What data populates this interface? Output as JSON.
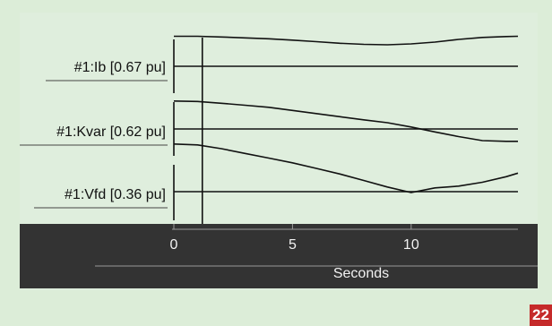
{
  "chart_data": {
    "type": "line",
    "title": "",
    "xlabel": "Seconds",
    "xlim": [
      0,
      14.5
    ],
    "xticks": [
      0,
      5,
      10
    ],
    "xtick_labels": [
      "0",
      "5",
      "10"
    ],
    "marker_time": 1.2,
    "grid": false,
    "series": [
      {
        "name": "#1:Ib [0.67 pu]",
        "x": [
          0,
          1,
          2,
          3,
          4,
          5,
          6,
          7,
          8,
          9,
          10,
          11,
          12,
          13,
          14,
          14.5
        ],
        "values": [
          1.34,
          1.34,
          1.31,
          1.27,
          1.23,
          1.17,
          1.1,
          1.03,
          0.98,
          0.96,
          1.0,
          1.08,
          1.2,
          1.29,
          1.33,
          1.34
        ]
      },
      {
        "name": "#1:Kvar [0.62 pu]",
        "x": [
          0,
          1,
          2,
          3,
          4,
          5,
          6,
          7,
          8,
          9,
          10,
          11,
          12,
          13,
          14,
          14.5
        ],
        "values": [
          1.25,
          1.23,
          1.15,
          1.06,
          0.97,
          0.83,
          0.69,
          0.55,
          0.41,
          0.28,
          0.09,
          -0.13,
          -0.34,
          -0.52,
          -0.55,
          -0.55
        ]
      },
      {
        "name": "#1:Vfd [0.36 pu]",
        "x": [
          0,
          1,
          2,
          3,
          4,
          5,
          6,
          7,
          8,
          9,
          10,
          11,
          12,
          13,
          14,
          14.5
        ],
        "values": [
          2.13,
          2.09,
          1.92,
          1.71,
          1.5,
          1.29,
          1.04,
          0.79,
          0.5,
          0.21,
          -0.04,
          0.17,
          0.25,
          0.42,
          0.67,
          0.83
        ]
      }
    ]
  },
  "page": {
    "number": "22"
  }
}
